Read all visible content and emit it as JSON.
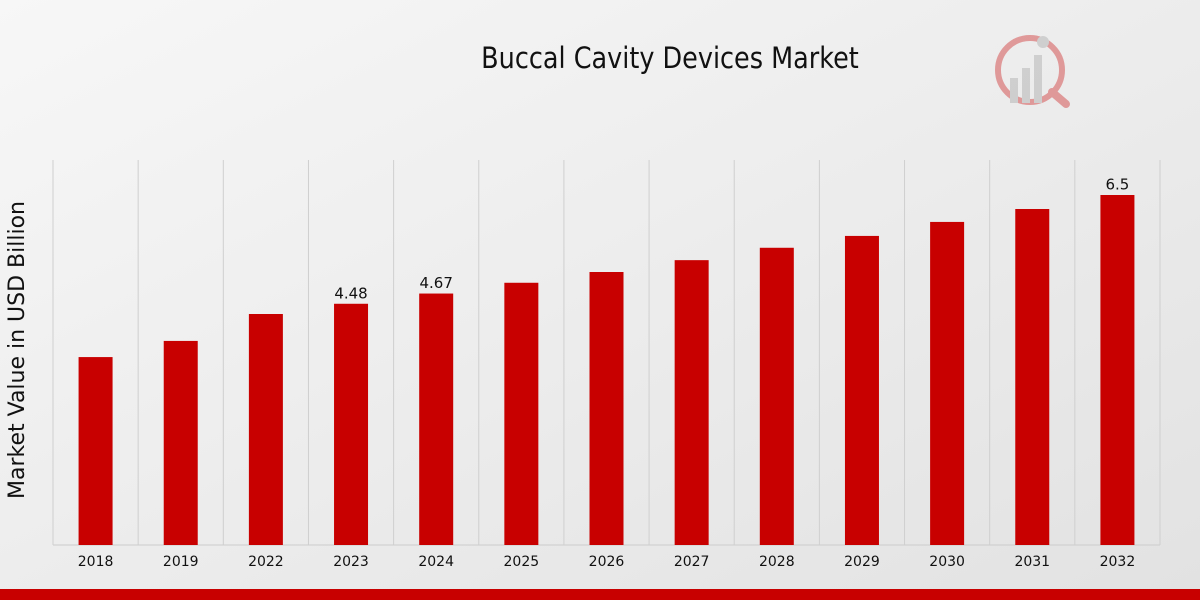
{
  "chart_data": {
    "type": "bar",
    "title": "Buccal Cavity Devices Market",
    "y_label": "Market Value in USD Billion",
    "categories": [
      "2018",
      "2019",
      "2022",
      "2023",
      "2024",
      "2025",
      "2026",
      "2027",
      "2028",
      "2029",
      "2030",
      "2031",
      "2032"
    ],
    "values": [
      3.49,
      3.79,
      4.29,
      4.48,
      4.67,
      4.87,
      5.07,
      5.29,
      5.52,
      5.74,
      6.0,
      6.24,
      6.5
    ],
    "value_labels": [
      null,
      null,
      null,
      "4.48",
      "4.67",
      null,
      null,
      null,
      null,
      null,
      null,
      null,
      "6.5"
    ],
    "color": "#c80000",
    "ylim": [
      0,
      7.15
    ],
    "grid": "x"
  }
}
